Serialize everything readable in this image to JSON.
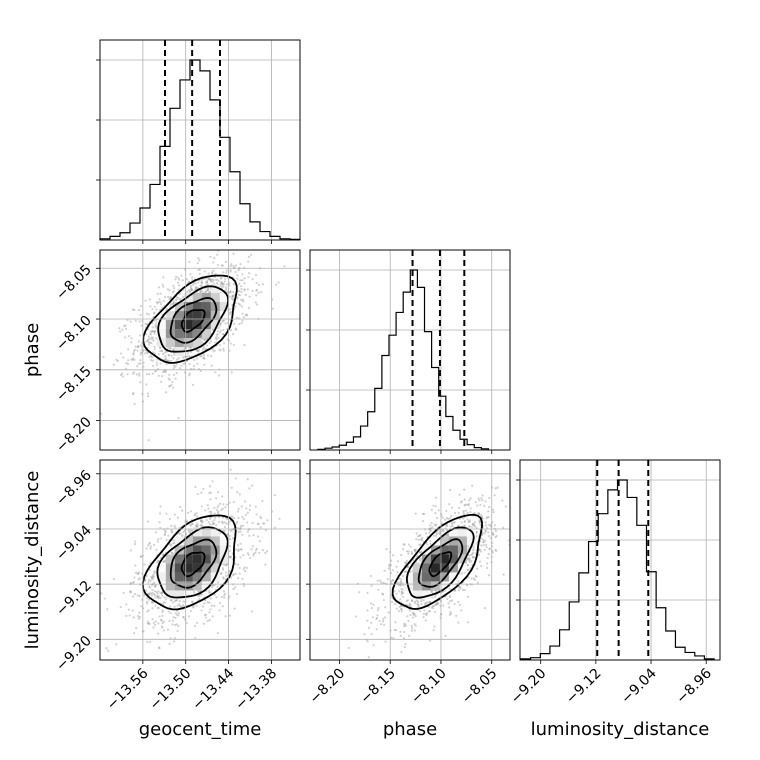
{
  "chart_data": {
    "type": "corner",
    "parameters": [
      "geocent_time",
      "phase",
      "luminosity_distance"
    ],
    "axis_labels": {
      "geocent_time": "geocent_time",
      "phase": "phase",
      "luminosity_distance": "luminosity_distance"
    },
    "ranges": {
      "geocent_time": [
        -13.62,
        -13.34
      ],
      "phase": [
        -8.229,
        -8.032
      ],
      "luminosity_distance": [
        -9.23,
        -8.94
      ]
    },
    "ticks": {
      "geocent_time": {
        "values": [
          -13.56,
          -13.5,
          -13.44,
          -13.38
        ],
        "labels": [
          "−13.56",
          "−13.50",
          "−13.44",
          "−13.38"
        ]
      },
      "phase": {
        "values": [
          -8.2,
          -8.15,
          -8.1,
          -8.05
        ],
        "labels": [
          "−8.20",
          "−8.15",
          "−8.10",
          "−8.05"
        ]
      },
      "luminosity_distance": {
        "values": [
          -9.2,
          -9.12,
          -9.04,
          -8.96
        ],
        "labels": [
          "−9.20",
          "−9.12",
          "−9.04",
          "−8.96"
        ]
      }
    },
    "marginals": [
      {
        "parameter": "geocent_time",
        "bin_edges": [
          -13.62,
          -13.606,
          -13.592,
          -13.578,
          -13.564,
          -13.55,
          -13.536,
          -13.522,
          -13.508,
          -13.494,
          -13.48,
          -13.466,
          -13.452,
          -13.438,
          -13.424,
          -13.41,
          -13.396,
          -13.382,
          -13.368,
          -13.354,
          -13.34
        ],
        "counts": [
          2,
          6,
          12,
          28,
          53,
          92,
          155,
          218,
          265,
          298,
          280,
          232,
          170,
          113,
          60,
          30,
          14,
          6,
          2,
          1
        ],
        "quantiles": [
          -13.529,
          -13.491,
          -13.452
        ]
      },
      {
        "parameter": "phase",
        "bin_edges": [
          -8.2212,
          -8.2142,
          -8.2072,
          -8.2002,
          -8.1932,
          -8.1862,
          -8.1792,
          -8.1722,
          -8.1652,
          -8.1582,
          -8.1512,
          -8.1442,
          -8.1372,
          -8.1302,
          -8.1232,
          -8.1162,
          -8.1092,
          -8.1022,
          -8.0952,
          -8.0882,
          -8.0812,
          -8.0742,
          -8.0672,
          -8.0602,
          -8.0532
        ],
        "counts": [
          1,
          3,
          5,
          8,
          13,
          22,
          40,
          64,
          103,
          158,
          192,
          230,
          264,
          301,
          272,
          198,
          138,
          90,
          56,
          33,
          18,
          9,
          4,
          2
        ],
        "quantiles": [
          -8.128,
          -8.101,
          -8.077
        ]
      },
      {
        "parameter": "luminosity_distance",
        "bin_edges": [
          -9.2286,
          -9.2146,
          -9.2006,
          -9.1866,
          -9.1726,
          -9.1586,
          -9.1446,
          -9.1306,
          -9.1166,
          -9.1026,
          -9.0886,
          -9.0746,
          -9.0606,
          -9.0466,
          -9.0326,
          -9.0186,
          -9.0046,
          -8.9906,
          -8.9766,
          -8.9626,
          -8.9486
        ],
        "counts": [
          2,
          4,
          11,
          24,
          52,
          100,
          150,
          204,
          252,
          293,
          310,
          280,
          232,
          152,
          90,
          50,
          22,
          13,
          7,
          2
        ],
        "quantiles": [
          -9.118,
          -9.087,
          -9.044
        ]
      }
    ],
    "joint": [
      {
        "x": "geocent_time",
        "y": "phase",
        "center": [
          -13.49,
          -8.101
        ],
        "sigma": [
          0.032,
          0.0215
        ],
        "correlation": 0.5
      },
      {
        "x": "geocent_time",
        "y": "luminosity_distance",
        "center": [
          -13.49,
          -9.09
        ],
        "sigma": [
          0.032,
          0.034
        ],
        "correlation": 0.45
      },
      {
        "x": "phase",
        "y": "luminosity_distance",
        "center": [
          -8.101,
          -9.09
        ],
        "sigma": [
          0.0215,
          0.034
        ],
        "correlation": 0.65
      }
    ],
    "contour_levels_sigma": [
      0.5,
      1.0,
      1.5,
      2.0
    ],
    "grid": true
  }
}
